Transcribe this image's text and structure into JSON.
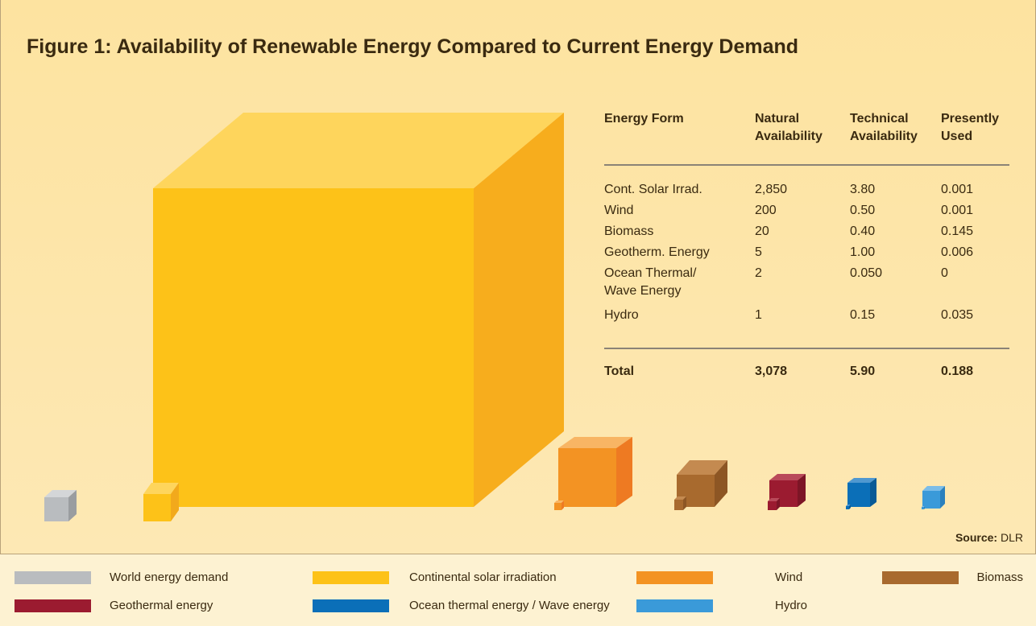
{
  "title": "Figure 1: Availability of Renewable Energy Compared to Current Energy Demand",
  "table": {
    "header": [
      "Energy Form",
      "Natural Availability",
      "Technical Availability",
      "Presently Used"
    ],
    "rows": [
      [
        "Cont. Solar Irrad.",
        "2,850",
        "3.80",
        "0.001"
      ],
      [
        "Wind",
        "200",
        "0.50",
        "0.001"
      ],
      [
        "Biomass",
        "20",
        "0.40",
        "0.145"
      ],
      [
        "Geotherm. Energy",
        "5",
        "1.00",
        "0.006"
      ],
      [
        "Ocean Thermal/ Wave Energy",
        "2",
        "0.050",
        "0"
      ],
      [
        "Hydro",
        "1",
        "0.15",
        "0.035"
      ]
    ],
    "total": [
      "Total",
      "3,078",
      "5.90",
      "0.188"
    ]
  },
  "legend": [
    {
      "label": "World energy demand",
      "color": "#b9bcbf"
    },
    {
      "label": "Continental solar irradiation",
      "color": "#fdc218"
    },
    {
      "label": "Wind",
      "color": "#f39323"
    },
    {
      "label": "Biomass",
      "color": "#a86a2e"
    },
    {
      "label": "Geothermal energy",
      "color": "#9b1b30"
    },
    {
      "label": "Ocean thermal energy / Wave energy",
      "color": "#0b6fb8"
    },
    {
      "label": "Hydro",
      "color": "#3a9ad9"
    }
  ],
  "source": {
    "label": "Source:",
    "text": "DLR"
  }
}
